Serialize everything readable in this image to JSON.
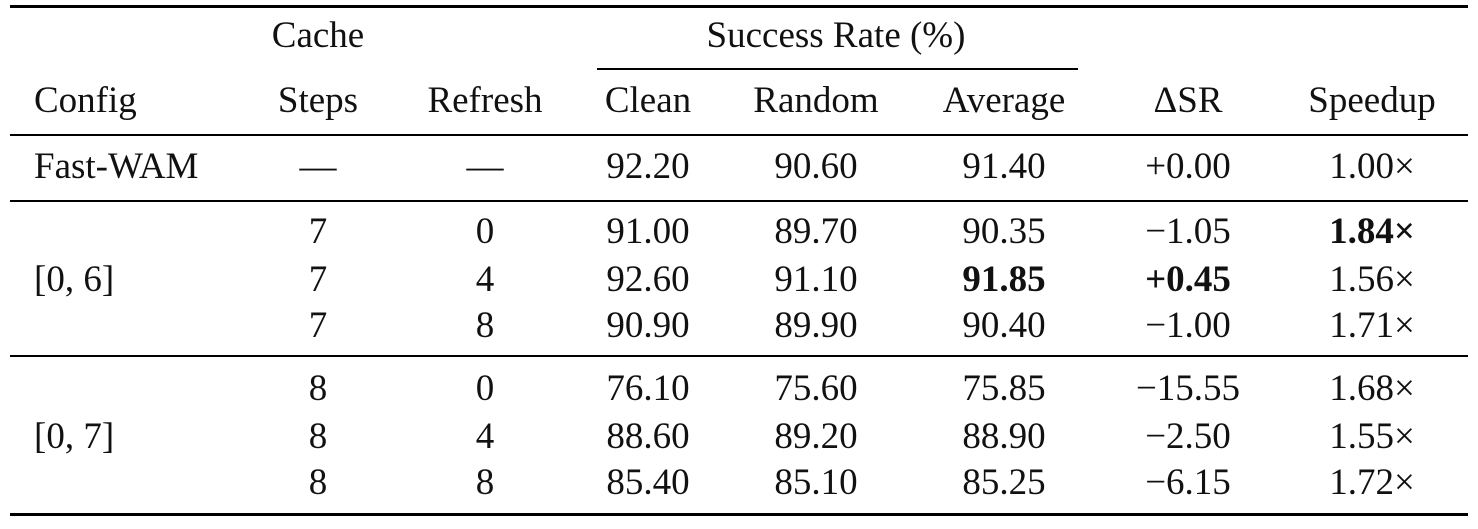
{
  "header": {
    "cache_label": "Cache",
    "success_rate_label": "Success Rate (%)",
    "columns": [
      "Config",
      "Steps",
      "Refresh",
      "Clean",
      "Random",
      "Average",
      "ΔSR",
      "Speedup"
    ]
  },
  "rows": [
    {
      "config": "Fast-WAM",
      "steps": "—",
      "refresh": "—",
      "clean": "92.20",
      "random": "90.60",
      "average": "91.40",
      "dsr": "+0.00",
      "speedup": "1.00×"
    },
    {
      "config": "[0, 6]",
      "steps": "7",
      "refresh": "0",
      "clean": "91.00",
      "random": "89.70",
      "average": "90.35",
      "dsr": "−1.05",
      "speedup": "1.84×"
    },
    {
      "config": "",
      "steps": "7",
      "refresh": "4",
      "clean": "92.60",
      "random": "91.10",
      "average": "91.85",
      "dsr": "+0.45",
      "speedup": "1.56×"
    },
    {
      "config": "",
      "steps": "7",
      "refresh": "8",
      "clean": "90.90",
      "random": "89.90",
      "average": "90.40",
      "dsr": "−1.00",
      "speedup": "1.71×"
    },
    {
      "config": "[0, 7]",
      "steps": "8",
      "refresh": "0",
      "clean": "76.10",
      "random": "75.60",
      "average": "75.85",
      "dsr": "−15.55",
      "speedup": "1.68×"
    },
    {
      "config": "",
      "steps": "8",
      "refresh": "4",
      "clean": "88.60",
      "random": "89.20",
      "average": "88.90",
      "dsr": "−2.50",
      "speedup": "1.55×"
    },
    {
      "config": "",
      "steps": "8",
      "refresh": "8",
      "clean": "85.40",
      "random": "85.10",
      "average": "85.25",
      "dsr": "−6.15",
      "speedup": "1.72×"
    }
  ]
}
